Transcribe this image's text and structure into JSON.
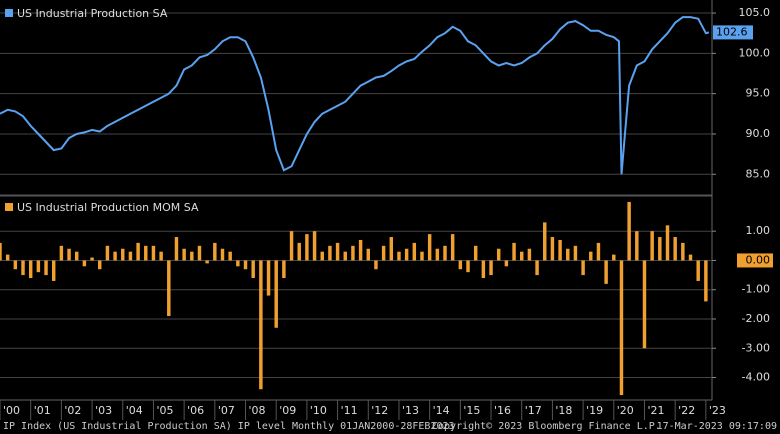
{
  "chart_data": [
    {
      "type": "line",
      "series": [
        {
          "name": "US Industrial Production SA",
          "color": "#5aa2f0",
          "x": [
            2000.0,
            2000.25,
            2000.5,
            2000.75,
            2001.0,
            2001.25,
            2001.5,
            2001.75,
            2002.0,
            2002.25,
            2002.5,
            2002.75,
            2003.0,
            2003.25,
            2003.5,
            2003.75,
            2004.0,
            2004.25,
            2004.5,
            2004.75,
            2005.0,
            2005.25,
            2005.5,
            2005.75,
            2006.0,
            2006.25,
            2006.5,
            2006.75,
            2007.0,
            2007.25,
            2007.5,
            2007.75,
            2008.0,
            2008.25,
            2008.5,
            2008.75,
            2009.0,
            2009.25,
            2009.5,
            2009.75,
            2010.0,
            2010.25,
            2010.5,
            2010.75,
            2011.0,
            2011.25,
            2011.5,
            2011.75,
            2012.0,
            2012.25,
            2012.5,
            2012.75,
            2013.0,
            2013.25,
            2013.5,
            2013.75,
            2014.0,
            2014.25,
            2014.5,
            2014.75,
            2015.0,
            2015.25,
            2015.5,
            2015.75,
            2016.0,
            2016.25,
            2016.5,
            2016.75,
            2017.0,
            2017.25,
            2017.5,
            2017.75,
            2018.0,
            2018.25,
            2018.5,
            2018.75,
            2019.0,
            2019.25,
            2019.5,
            2019.75,
            2020.0,
            2020.17,
            2020.25,
            2020.5,
            2020.75,
            2021.0,
            2021.25,
            2021.5,
            2021.75,
            2022.0,
            2022.25,
            2022.5,
            2022.75,
            2023.0,
            2023.1
          ],
          "values": [
            92.5,
            93,
            92.8,
            92.2,
            91,
            90,
            89,
            88,
            88.2,
            89.5,
            90,
            90.2,
            90.5,
            90.3,
            91,
            91.5,
            92,
            92.5,
            93,
            93.5,
            94,
            94.5,
            95,
            96,
            98,
            98.5,
            99.5,
            99.8,
            100.5,
            101.5,
            102,
            102,
            101.5,
            99.5,
            97,
            93,
            88,
            85.5,
            86,
            88,
            90,
            91.5,
            92.5,
            93,
            93.5,
            94,
            95,
            96,
            96.5,
            97,
            97.2,
            97.8,
            98.5,
            99,
            99.3,
            100.2,
            101,
            102,
            102.5,
            103.3,
            102.8,
            101.5,
            101,
            100,
            99,
            98.5,
            98.8,
            98.5,
            98.8,
            99.5,
            100,
            101,
            101.8,
            103,
            103.8,
            104,
            103.5,
            102.8,
            102.8,
            102.3,
            102,
            101.5,
            85,
            96,
            98.5,
            99,
            100.5,
            101.5,
            102.5,
            103.8,
            104.5,
            104.5,
            104.3,
            102.5,
            102.6
          ]
        }
      ],
      "ylim": [
        82.8,
        106
      ],
      "yticks": [
        {
          "value": 85,
          "label": "85.0"
        },
        {
          "value": 90,
          "label": "90.0"
        },
        {
          "value": 95,
          "label": "95.0"
        },
        {
          "value": 100,
          "label": "100.0"
        },
        {
          "value": 105,
          "label": "105.0"
        }
      ],
      "xlim": [
        2000,
        2023.2
      ],
      "grid": true
    },
    {
      "type": "bar",
      "series": [
        {
          "name": "US Industrial Production MOM SA",
          "color": "#f0a030",
          "x": [
            2000.0,
            2000.25,
            2000.5,
            2000.75,
            2001.0,
            2001.25,
            2001.5,
            2001.75,
            2002.0,
            2002.25,
            2002.5,
            2002.75,
            2003.0,
            2003.25,
            2003.5,
            2003.75,
            2004.0,
            2004.25,
            2004.5,
            2004.75,
            2005.0,
            2005.25,
            2005.5,
            2005.75,
            2006.0,
            2006.25,
            2006.5,
            2006.75,
            2007.0,
            2007.25,
            2007.5,
            2007.75,
            2008.0,
            2008.25,
            2008.5,
            2008.75,
            2009.0,
            2009.25,
            2009.5,
            2009.75,
            2010.0,
            2010.25,
            2010.5,
            2010.75,
            2011.0,
            2011.25,
            2011.5,
            2011.75,
            2012.0,
            2012.25,
            2012.5,
            2012.75,
            2013.0,
            2013.25,
            2013.5,
            2013.75,
            2014.0,
            2014.25,
            2014.5,
            2014.75,
            2015.0,
            2015.25,
            2015.5,
            2015.75,
            2016.0,
            2016.25,
            2016.5,
            2016.75,
            2017.0,
            2017.25,
            2017.5,
            2017.75,
            2018.0,
            2018.25,
            2018.5,
            2018.75,
            2019.0,
            2019.25,
            2019.5,
            2019.75,
            2020.0,
            2020.25,
            2020.5,
            2020.75,
            2021.0,
            2021.25,
            2021.5,
            2021.75,
            2022.0,
            2022.25,
            2022.5,
            2022.75,
            2023.0
          ],
          "values": [
            0.6,
            0.2,
            -0.3,
            -0.5,
            -0.6,
            -0.4,
            -0.5,
            -0.7,
            0.5,
            0.4,
            0.3,
            -0.2,
            0.1,
            -0.3,
            0.5,
            0.3,
            0.4,
            0.3,
            0.6,
            0.5,
            0.5,
            0.3,
            -1.9,
            0.8,
            0.4,
            0.3,
            0.5,
            -0.1,
            0.6,
            0.4,
            0.3,
            -0.2,
            -0.3,
            -0.6,
            -4.4,
            -1.2,
            -2.3,
            -0.6,
            1.0,
            0.6,
            0.9,
            1.0,
            0.3,
            0.5,
            0.6,
            0.3,
            0.5,
            0.7,
            0.4,
            -0.3,
            0.5,
            0.8,
            0.3,
            0.4,
            0.6,
            0.3,
            0.9,
            0.4,
            0.5,
            0.9,
            -0.3,
            -0.4,
            0.5,
            -0.6,
            -0.5,
            0.4,
            -0.2,
            0.6,
            0.3,
            0.4,
            -0.5,
            1.3,
            0.8,
            0.7,
            0.4,
            0.5,
            -0.5,
            0.3,
            0.6,
            -0.8,
            0.2,
            -4.6,
            2.0,
            1.0,
            -3.0,
            1.0,
            0.8,
            1.2,
            0.8,
            0.6,
            0.2,
            -0.7,
            -1.4
          ]
        }
      ],
      "ylim": [
        -4.7,
        2.1
      ],
      "yticks": [
        {
          "value": 1,
          "label": "1.00"
        },
        {
          "value": 0,
          "label": "0.00"
        },
        {
          "value": -1,
          "label": "-1.00"
        },
        {
          "value": -2,
          "label": "-2.00"
        },
        {
          "value": -3,
          "label": "-3.00"
        },
        {
          "value": -4,
          "label": "-4.00"
        }
      ],
      "xlim": [
        2000,
        2023.2
      ],
      "xticks": [
        {
          "value": 2000,
          "label": "'00"
        },
        {
          "value": 2001,
          "label": "'01"
        },
        {
          "value": 2002,
          "label": "'02"
        },
        {
          "value": 2003,
          "label": "'03"
        },
        {
          "value": 2004,
          "label": "'04"
        },
        {
          "value": 2005,
          "label": "'05"
        },
        {
          "value": 2006,
          "label": "'06"
        },
        {
          "value": 2007,
          "label": "'07"
        },
        {
          "value": 2008,
          "label": "'08"
        },
        {
          "value": 2009,
          "label": "'09"
        },
        {
          "value": 2010,
          "label": "'10"
        },
        {
          "value": 2011,
          "label": "'11"
        },
        {
          "value": 2012,
          "label": "'12"
        },
        {
          "value": 2013,
          "label": "'13"
        },
        {
          "value": 2014,
          "label": "'14"
        },
        {
          "value": 2015,
          "label": "'15"
        },
        {
          "value": 2016,
          "label": "'16"
        },
        {
          "value": 2017,
          "label": "'17"
        },
        {
          "value": 2018,
          "label": "'18"
        },
        {
          "value": 2019,
          "label": "'19"
        },
        {
          "value": 2020,
          "label": "'20"
        },
        {
          "value": 2021,
          "label": "'21"
        },
        {
          "value": 2022,
          "label": "'22"
        },
        {
          "value": 2023,
          "label": "'23"
        }
      ],
      "grid": true
    }
  ],
  "footer": {
    "source": "IP Index (US Industrial Production SA) IP level  Monthly 01JAN2000-28FEB2023",
    "copyright": "Copyright© 2023 Bloomberg Finance L.P.",
    "timestamp": "17-Mar-2023 09:17:09"
  }
}
